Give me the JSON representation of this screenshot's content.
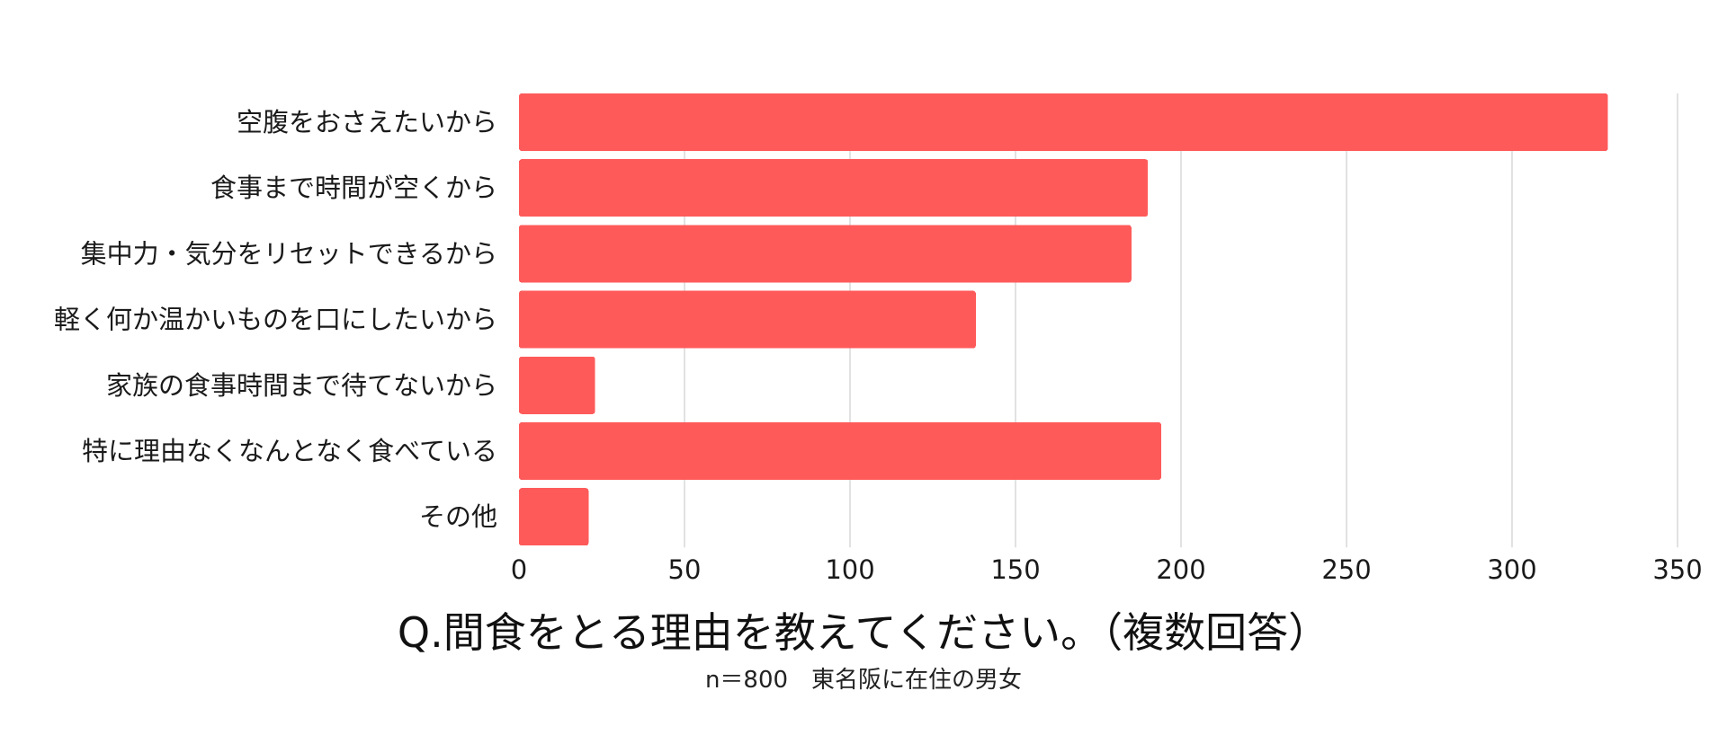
{
  "chart_data": {
    "type": "bar",
    "orientation": "horizontal",
    "title": "Q.間食をとる理由を教えてください。（複数回答）",
    "subtitle": "n＝800　東名阪に在住の男女",
    "categories": [
      "空腹をおさえたいから",
      "食事まで時間が空くから",
      "集中力・気分をリセットできるから",
      "軽く何か温かいものを口にしたいから",
      "家族の食事時間まで待てないから",
      "特に理由なくなんとなく食べている",
      "その他"
    ],
    "values": [
      329,
      190,
      185,
      138,
      23,
      194,
      21
    ],
    "xlim": [
      0,
      350
    ],
    "xticks": [
      "0",
      "50",
      "100",
      "150",
      "200",
      "250",
      "300",
      "350"
    ],
    "xtick_values": [
      0,
      50,
      100,
      150,
      200,
      250,
      300,
      350
    ],
    "grid": "vertical",
    "bar_color": "#ff5a5a",
    "grid_color": "#d9d9d9"
  }
}
